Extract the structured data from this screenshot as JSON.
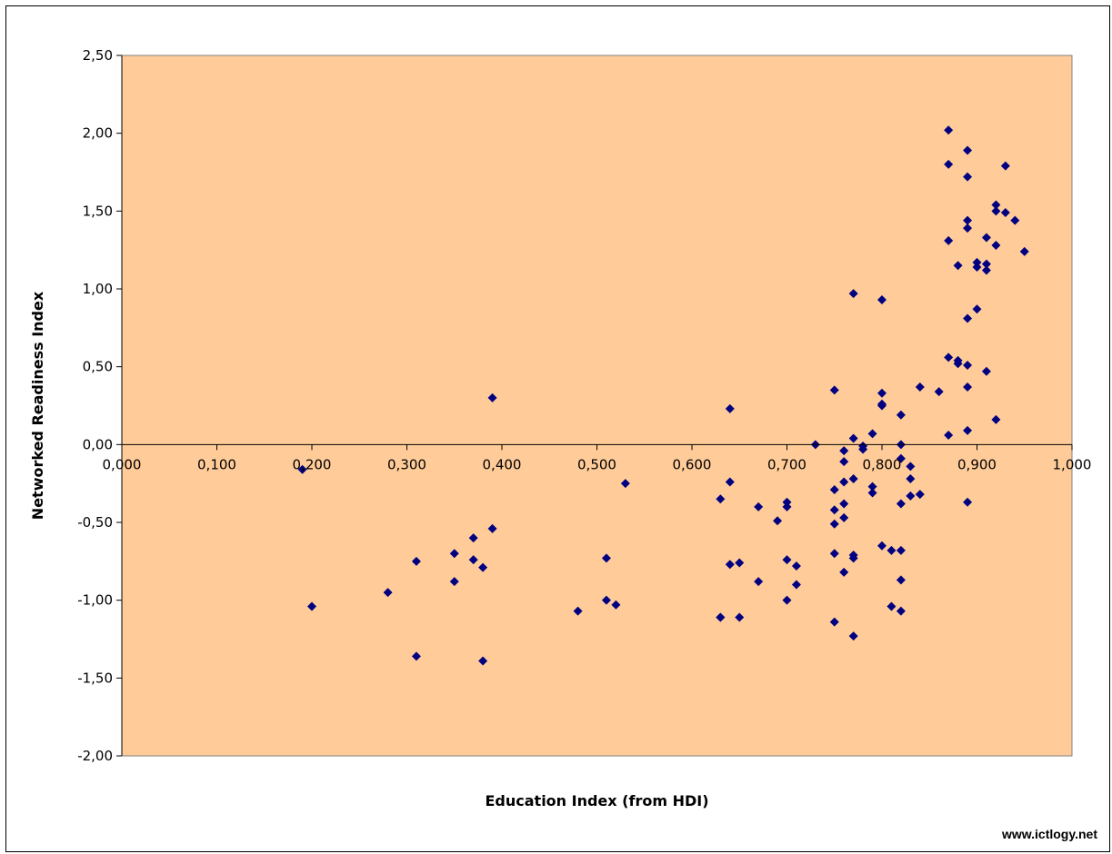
{
  "chart_data": {
    "type": "scatter",
    "title": "",
    "xlabel": "Education Index (from HDI)",
    "ylabel": "Networked Readiness Index",
    "xlim": [
      0,
      1
    ],
    "ylim": [
      -2,
      2.5
    ],
    "grid": false,
    "legend": "none",
    "x_ticks": [
      "0,000",
      "0,100",
      "0,200",
      "0,300",
      "0,400",
      "0,500",
      "0,600",
      "0,700",
      "0,800",
      "0,900",
      "1,000"
    ],
    "y_ticks": [
      "2,50",
      "2,00",
      "1,50",
      "1,00",
      "0,50",
      "0,00",
      "-0,50",
      "-1,00",
      "-1,50",
      "-2,00"
    ],
    "colors": {
      "plot_background": "#FFCC99",
      "marker": "#000080"
    },
    "points": [
      [
        0.19,
        -0.16
      ],
      [
        0.2,
        -1.04
      ],
      [
        0.28,
        -0.95
      ],
      [
        0.31,
        -0.75
      ],
      [
        0.31,
        -1.36
      ],
      [
        0.35,
        -0.7
      ],
      [
        0.35,
        -0.88
      ],
      [
        0.37,
        -0.6
      ],
      [
        0.37,
        -0.74
      ],
      [
        0.38,
        -0.79
      ],
      [
        0.38,
        -1.39
      ],
      [
        0.39,
        0.3
      ],
      [
        0.39,
        -0.54
      ],
      [
        0.48,
        -1.07
      ],
      [
        0.51,
        -0.73
      ],
      [
        0.51,
        -1.0
      ],
      [
        0.52,
        -1.03
      ],
      [
        0.53,
        -0.25
      ],
      [
        0.63,
        -0.35
      ],
      [
        0.63,
        -1.11
      ],
      [
        0.63,
        -1.11
      ],
      [
        0.64,
        0.23
      ],
      [
        0.64,
        -0.24
      ],
      [
        0.64,
        -0.77
      ],
      [
        0.65,
        -0.76
      ],
      [
        0.65,
        -1.11
      ],
      [
        0.67,
        -0.4
      ],
      [
        0.67,
        -0.88
      ],
      [
        0.69,
        -0.49
      ],
      [
        0.7,
        -0.37
      ],
      [
        0.7,
        -0.4
      ],
      [
        0.7,
        -0.74
      ],
      [
        0.7,
        -1.0
      ],
      [
        0.71,
        -0.78
      ],
      [
        0.71,
        -0.9
      ],
      [
        0.73,
        0.0
      ],
      [
        0.75,
        0.35
      ],
      [
        0.75,
        -0.29
      ],
      [
        0.75,
        -0.42
      ],
      [
        0.75,
        -0.51
      ],
      [
        0.75,
        -0.7
      ],
      [
        0.75,
        -1.14
      ],
      [
        0.76,
        -0.04
      ],
      [
        0.76,
        -0.11
      ],
      [
        0.76,
        -0.24
      ],
      [
        0.76,
        -0.38
      ],
      [
        0.76,
        -0.47
      ],
      [
        0.76,
        -0.82
      ],
      [
        0.77,
        0.97
      ],
      [
        0.77,
        0.04
      ],
      [
        0.77,
        -0.22
      ],
      [
        0.77,
        -0.71
      ],
      [
        0.77,
        -0.73
      ],
      [
        0.77,
        -1.23
      ],
      [
        0.78,
        -0.01
      ],
      [
        0.78,
        -0.03
      ],
      [
        0.79,
        0.07
      ],
      [
        0.79,
        -0.27
      ],
      [
        0.79,
        -0.31
      ],
      [
        0.8,
        0.93
      ],
      [
        0.8,
        0.33
      ],
      [
        0.8,
        0.26
      ],
      [
        0.8,
        0.25
      ],
      [
        0.8,
        -0.65
      ],
      [
        0.81,
        -0.68
      ],
      [
        0.81,
        -1.04
      ],
      [
        0.82,
        0.19
      ],
      [
        0.82,
        0.0
      ],
      [
        0.82,
        -0.09
      ],
      [
        0.82,
        -0.38
      ],
      [
        0.82,
        -0.68
      ],
      [
        0.82,
        -0.87
      ],
      [
        0.82,
        -1.07
      ],
      [
        0.83,
        -0.14
      ],
      [
        0.83,
        -0.22
      ],
      [
        0.83,
        -0.33
      ],
      [
        0.84,
        0.37
      ],
      [
        0.84,
        -0.32
      ],
      [
        0.86,
        0.34
      ],
      [
        0.87,
        2.02
      ],
      [
        0.87,
        1.8
      ],
      [
        0.87,
        1.31
      ],
      [
        0.87,
        0.56
      ],
      [
        0.87,
        0.06
      ],
      [
        0.88,
        1.15
      ],
      [
        0.88,
        0.54
      ],
      [
        0.88,
        0.52
      ],
      [
        0.89,
        1.89
      ],
      [
        0.89,
        1.72
      ],
      [
        0.89,
        1.44
      ],
      [
        0.89,
        1.39
      ],
      [
        0.89,
        0.81
      ],
      [
        0.89,
        0.51
      ],
      [
        0.89,
        0.37
      ],
      [
        0.89,
        0.09
      ],
      [
        0.89,
        -0.37
      ],
      [
        0.9,
        1.17
      ],
      [
        0.9,
        1.14
      ],
      [
        0.9,
        0.87
      ],
      [
        0.91,
        1.33
      ],
      [
        0.91,
        1.16
      ],
      [
        0.91,
        1.12
      ],
      [
        0.91,
        0.47
      ],
      [
        0.92,
        1.54
      ],
      [
        0.92,
        1.5
      ],
      [
        0.92,
        1.28
      ],
      [
        0.92,
        0.16
      ],
      [
        0.93,
        1.79
      ],
      [
        0.93,
        1.49
      ],
      [
        0.94,
        1.44
      ],
      [
        0.95,
        1.24
      ]
    ]
  },
  "footer": {
    "watermark": "www.ictlogy.net"
  }
}
